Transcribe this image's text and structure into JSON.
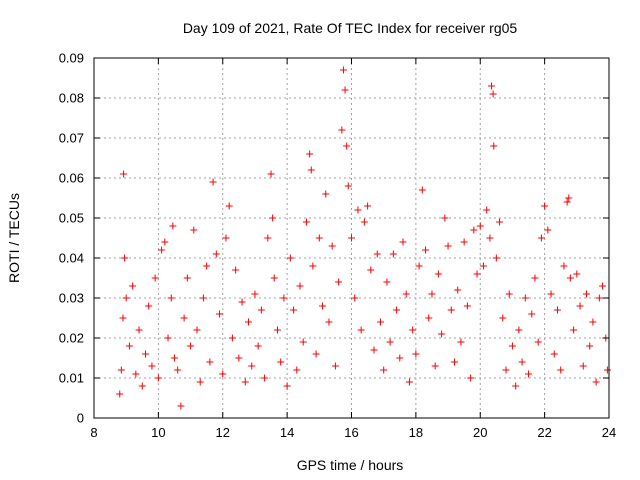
{
  "chart_data": {
    "type": "scatter",
    "title": "Day 109 of 2021, Rate Of TEC Index for receiver rg05",
    "xlabel": "GPS time / hours",
    "ylabel": "ROTI / TECUs",
    "xlim": [
      8,
      24
    ],
    "ylim": [
      0,
      0.09
    ],
    "x_ticks": [
      "8",
      "10",
      "12",
      "14",
      "16",
      "18",
      "20",
      "22",
      "24"
    ],
    "y_ticks": [
      "0",
      "0.01",
      "0.02",
      "0.03",
      "0.04",
      "0.05",
      "0.06",
      "0.07",
      "0.08",
      "0.09"
    ],
    "grid": true,
    "marker": "+",
    "series_color": "#ff0000",
    "series": [
      {
        "points": [
          [
            8.8,
            0.006
          ],
          [
            8.85,
            0.012
          ],
          [
            8.9,
            0.025
          ],
          [
            8.92,
            0.061
          ],
          [
            8.95,
            0.04
          ],
          [
            9.0,
            0.03
          ],
          [
            9.1,
            0.018
          ],
          [
            9.2,
            0.033
          ],
          [
            9.3,
            0.011
          ],
          [
            9.4,
            0.022
          ],
          [
            9.5,
            0.008
          ],
          [
            9.6,
            0.016
          ],
          [
            9.7,
            0.028
          ],
          [
            9.8,
            0.013
          ],
          [
            9.9,
            0.035
          ],
          [
            10.0,
            0.01
          ],
          [
            10.1,
            0.042
          ],
          [
            10.2,
            0.044
          ],
          [
            10.3,
            0.02
          ],
          [
            10.4,
            0.03
          ],
          [
            10.45,
            0.048
          ],
          [
            10.5,
            0.015
          ],
          [
            10.6,
            0.012
          ],
          [
            10.7,
            0.003
          ],
          [
            10.8,
            0.025
          ],
          [
            10.9,
            0.035
          ],
          [
            11.0,
            0.018
          ],
          [
            11.1,
            0.047
          ],
          [
            11.2,
            0.022
          ],
          [
            11.3,
            0.009
          ],
          [
            11.4,
            0.03
          ],
          [
            11.5,
            0.038
          ],
          [
            11.6,
            0.014
          ],
          [
            11.7,
            0.059
          ],
          [
            11.8,
            0.041
          ],
          [
            11.9,
            0.026
          ],
          [
            12.0,
            0.011
          ],
          [
            12.1,
            0.045
          ],
          [
            12.2,
            0.053
          ],
          [
            12.3,
            0.02
          ],
          [
            12.4,
            0.037
          ],
          [
            12.5,
            0.015
          ],
          [
            12.6,
            0.029
          ],
          [
            12.7,
            0.009
          ],
          [
            12.8,
            0.024
          ],
          [
            12.9,
            0.013
          ],
          [
            13.0,
            0.031
          ],
          [
            13.1,
            0.018
          ],
          [
            13.2,
            0.027
          ],
          [
            13.3,
            0.01
          ],
          [
            13.4,
            0.045
          ],
          [
            13.5,
            0.061
          ],
          [
            13.55,
            0.05
          ],
          [
            13.6,
            0.035
          ],
          [
            13.7,
            0.022
          ],
          [
            13.8,
            0.014
          ],
          [
            13.9,
            0.03
          ],
          [
            14.0,
            0.008
          ],
          [
            14.1,
            0.04
          ],
          [
            14.2,
            0.027
          ],
          [
            14.3,
            0.012
          ],
          [
            14.4,
            0.033
          ],
          [
            14.5,
            0.019
          ],
          [
            14.6,
            0.049
          ],
          [
            14.7,
            0.066
          ],
          [
            14.75,
            0.062
          ],
          [
            14.8,
            0.038
          ],
          [
            14.9,
            0.016
          ],
          [
            15.0,
            0.045
          ],
          [
            15.1,
            0.028
          ],
          [
            15.2,
            0.056
          ],
          [
            15.3,
            0.024
          ],
          [
            15.4,
            0.043
          ],
          [
            15.5,
            0.013
          ],
          [
            15.6,
            0.034
          ],
          [
            15.7,
            0.072
          ],
          [
            15.75,
            0.087
          ],
          [
            15.8,
            0.082
          ],
          [
            15.85,
            0.068
          ],
          [
            15.9,
            0.058
          ],
          [
            16.0,
            0.045
          ],
          [
            16.1,
            0.03
          ],
          [
            16.2,
            0.052
          ],
          [
            16.3,
            0.022
          ],
          [
            16.4,
            0.049
          ],
          [
            16.5,
            0.053
          ],
          [
            16.6,
            0.037
          ],
          [
            16.7,
            0.017
          ],
          [
            16.8,
            0.041
          ],
          [
            16.9,
            0.024
          ],
          [
            17.0,
            0.012
          ],
          [
            17.1,
            0.034
          ],
          [
            17.2,
            0.019
          ],
          [
            17.3,
            0.041
          ],
          [
            17.4,
            0.027
          ],
          [
            17.5,
            0.015
          ],
          [
            17.6,
            0.044
          ],
          [
            17.7,
            0.031
          ],
          [
            17.8,
            0.009
          ],
          [
            17.9,
            0.022
          ],
          [
            18.0,
            0.016
          ],
          [
            18.1,
            0.038
          ],
          [
            18.2,
            0.057
          ],
          [
            18.3,
            0.042
          ],
          [
            18.4,
            0.025
          ],
          [
            18.5,
            0.031
          ],
          [
            18.6,
            0.013
          ],
          [
            18.7,
            0.036
          ],
          [
            18.8,
            0.021
          ],
          [
            18.9,
            0.05
          ],
          [
            19.0,
            0.043
          ],
          [
            19.1,
            0.027
          ],
          [
            19.2,
            0.014
          ],
          [
            19.3,
            0.032
          ],
          [
            19.4,
            0.019
          ],
          [
            19.5,
            0.044
          ],
          [
            19.6,
            0.028
          ],
          [
            19.7,
            0.01
          ],
          [
            19.8,
            0.047
          ],
          [
            19.9,
            0.036
          ],
          [
            20.0,
            0.048
          ],
          [
            20.1,
            0.038
          ],
          [
            20.2,
            0.052
          ],
          [
            20.3,
            0.045
          ],
          [
            20.35,
            0.083
          ],
          [
            20.4,
            0.081
          ],
          [
            20.42,
            0.068
          ],
          [
            20.5,
            0.04
          ],
          [
            20.6,
            0.049
          ],
          [
            20.7,
            0.025
          ],
          [
            20.8,
            0.012
          ],
          [
            20.9,
            0.031
          ],
          [
            21.0,
            0.018
          ],
          [
            21.1,
            0.008
          ],
          [
            21.2,
            0.022
          ],
          [
            21.3,
            0.014
          ],
          [
            21.4,
            0.03
          ],
          [
            21.5,
            0.011
          ],
          [
            21.6,
            0.026
          ],
          [
            21.7,
            0.035
          ],
          [
            21.8,
            0.019
          ],
          [
            21.9,
            0.045
          ],
          [
            22.0,
            0.053
          ],
          [
            22.1,
            0.047
          ],
          [
            22.2,
            0.031
          ],
          [
            22.3,
            0.016
          ],
          [
            22.4,
            0.027
          ],
          [
            22.5,
            0.012
          ],
          [
            22.6,
            0.038
          ],
          [
            22.7,
            0.054
          ],
          [
            22.75,
            0.055
          ],
          [
            22.8,
            0.035
          ],
          [
            22.9,
            0.022
          ],
          [
            23.0,
            0.036
          ],
          [
            23.1,
            0.028
          ],
          [
            23.2,
            0.013
          ],
          [
            23.3,
            0.031
          ],
          [
            23.4,
            0.018
          ],
          [
            23.5,
            0.024
          ],
          [
            23.6,
            0.009
          ],
          [
            23.7,
            0.03
          ],
          [
            23.8,
            0.033
          ],
          [
            23.9,
            0.02
          ],
          [
            23.95,
            0.012
          ]
        ]
      }
    ]
  }
}
